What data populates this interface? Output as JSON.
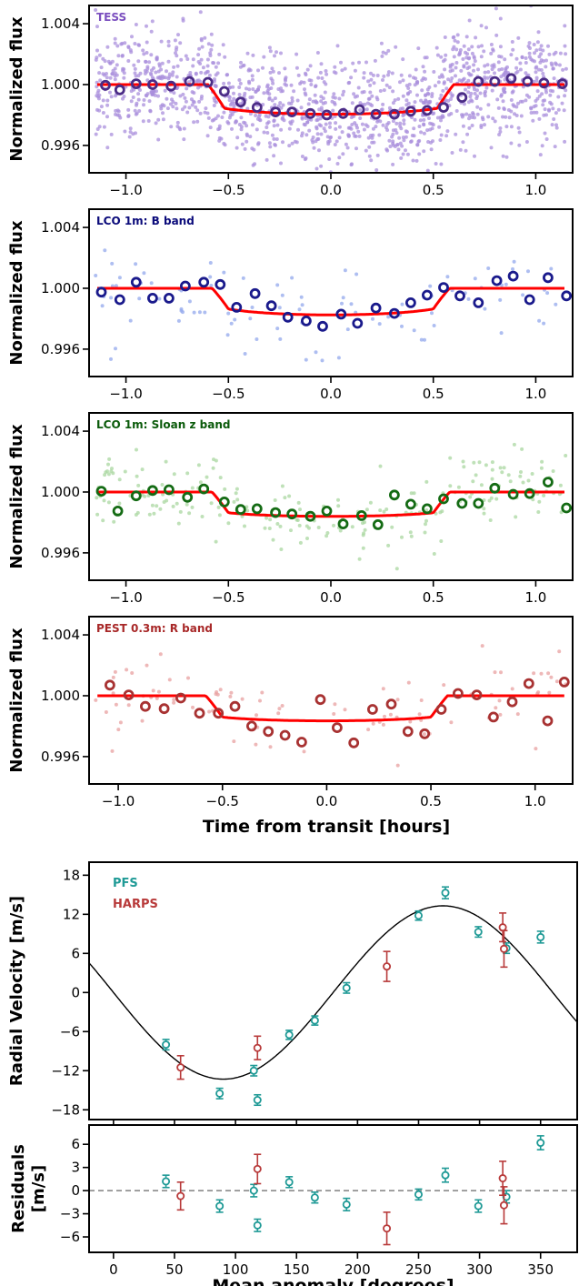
{
  "chart_data": [
    {
      "type": "scatter",
      "panel_label": "TESS",
      "label_color": "#7b4fbf",
      "ylabel": "Normalized flux",
      "xlim": [
        -1.18,
        1.18
      ],
      "ylim": [
        0.9942,
        1.0052
      ],
      "xticks": [
        -1.0,
        -0.5,
        0.0,
        0.5,
        1.0
      ],
      "xtick_labels": [
        "−1.0",
        "−0.5",
        "0.0",
        "0.5",
        "1.0"
      ],
      "yticks": [
        0.996,
        1.0,
        1.004
      ],
      "ytick_labels": [
        "0.996",
        "1.000",
        "1.004"
      ],
      "raw_color": "#a98fdc",
      "binned_color": "#4b2c86",
      "model_color": "#ff0000",
      "raw_scatter": 0.0018,
      "raw_count": 1400,
      "binned": {
        "x": [
          -1.1,
          -1.03,
          -0.95,
          -0.87,
          -0.78,
          -0.69,
          -0.6,
          -0.52,
          -0.44,
          -0.36,
          -0.27,
          -0.19,
          -0.1,
          -0.02,
          0.06,
          0.14,
          0.22,
          0.31,
          0.39,
          0.47,
          0.55,
          0.64,
          0.72,
          0.8,
          0.88,
          0.96,
          1.04,
          1.13
        ],
        "y": [
          0.99995,
          0.99965,
          1.00005,
          1.0,
          0.9999,
          1.0002,
          1.00015,
          0.99955,
          0.99885,
          0.9985,
          0.9982,
          0.9982,
          0.9981,
          0.998,
          0.9981,
          0.99835,
          0.99805,
          0.99805,
          0.99825,
          0.9983,
          0.9985,
          0.99915,
          1.0002,
          1.0002,
          1.0004,
          1.0002,
          1.0001,
          1.00005
        ]
      },
      "model": {
        "depth": 0.00195,
        "t14": 1.2,
        "ingress": 0.08,
        "limb_darkening": 0.4
      }
    },
    {
      "type": "scatter",
      "panel_label": "LCO 1m: B band",
      "label_color": "#0a0a7a",
      "ylabel": "Normalized flux",
      "xlim": [
        -1.18,
        1.18
      ],
      "ylim": [
        0.9942,
        1.0052
      ],
      "xticks": [
        -1.0,
        -0.5,
        0.0,
        0.5,
        1.0
      ],
      "xtick_labels": [
        "−1.0",
        "−0.5",
        "0.0",
        "0.5",
        "1.0"
      ],
      "yticks": [
        0.996,
        1.0,
        1.004
      ],
      "ytick_labels": [
        "0.996",
        "1.000",
        "1.004"
      ],
      "raw_color": "#93a8ec",
      "binned_color": "#1a1a8c",
      "model_color": "#ff0000",
      "raw_scatter": 0.0014,
      "raw_count": 100,
      "binned": {
        "x": [
          -1.12,
          -1.03,
          -0.95,
          -0.87,
          -0.79,
          -0.71,
          -0.62,
          -0.54,
          -0.46,
          -0.37,
          -0.29,
          -0.21,
          -0.12,
          -0.04,
          0.05,
          0.13,
          0.22,
          0.31,
          0.39,
          0.47,
          0.55,
          0.63,
          0.72,
          0.81,
          0.89,
          0.97,
          1.06,
          1.15
        ],
        "y": [
          0.99975,
          0.99925,
          1.0004,
          0.99935,
          0.99935,
          1.00015,
          1.0004,
          1.00025,
          0.99875,
          0.99965,
          0.99885,
          0.9981,
          0.99785,
          0.9975,
          0.9983,
          0.9977,
          0.9987,
          0.99835,
          0.99905,
          0.99955,
          1.00005,
          0.9995,
          0.99905,
          1.0005,
          1.0008,
          0.99925,
          1.0007,
          0.9995
        ]
      },
      "model": {
        "depth": 0.00175,
        "t14": 1.16,
        "ingress": 0.08,
        "limb_darkening": 0.45
      }
    },
    {
      "type": "scatter",
      "panel_label": "LCO 1m: Sloan z band",
      "label_color": "#0a5a0a",
      "ylabel": "Normalized flux",
      "xlim": [
        -1.18,
        1.18
      ],
      "ylim": [
        0.9942,
        1.0052
      ],
      "xticks": [
        -1.0,
        -0.5,
        0.0,
        0.5,
        1.0
      ],
      "xtick_labels": [
        "−1.0",
        "−0.5",
        "0.0",
        "0.5",
        "1.0"
      ],
      "yticks": [
        0.996,
        1.0,
        1.004
      ],
      "ytick_labels": [
        "0.996",
        "1.000",
        "1.004"
      ],
      "raw_color": "#a9d7a0",
      "binned_color": "#146b14",
      "model_color": "#ff0000",
      "raw_scatter": 0.0012,
      "raw_count": 220,
      "binned": {
        "x": [
          -1.12,
          -1.04,
          -0.95,
          -0.87,
          -0.79,
          -0.7,
          -0.62,
          -0.52,
          -0.44,
          -0.36,
          -0.27,
          -0.19,
          -0.1,
          -0.02,
          0.06,
          0.15,
          0.23,
          0.31,
          0.39,
          0.47,
          0.55,
          0.64,
          0.72,
          0.8,
          0.89,
          0.97,
          1.06,
          1.15
        ],
        "y": [
          1.00005,
          0.99875,
          0.99975,
          1.0001,
          1.00015,
          0.99965,
          1.0002,
          0.99935,
          0.99885,
          0.9989,
          0.99865,
          0.99855,
          0.9984,
          0.99875,
          0.9979,
          0.99845,
          0.99785,
          0.9998,
          0.9992,
          0.9989,
          0.99955,
          0.99925,
          0.99925,
          1.00025,
          0.99985,
          0.9999,
          1.00065,
          0.99895
        ]
      },
      "model": {
        "depth": 0.0016,
        "t14": 1.16,
        "ingress": 0.08,
        "limb_darkening": 0.3
      }
    },
    {
      "type": "scatter",
      "panel_label": "PEST 0.3m: R band",
      "label_color": "#a82828",
      "ylabel": "Normalized flux",
      "xlabel": "Time from transit [hours]",
      "xlim": [
        -1.14,
        1.18
      ],
      "ylim": [
        0.9942,
        1.0052
      ],
      "xticks": [
        -1.0,
        -0.5,
        0.0,
        0.5,
        1.0
      ],
      "xtick_labels": [
        "−1.0",
        "−0.5",
        "0.0",
        "0.5",
        "1.0"
      ],
      "yticks": [
        0.996,
        1.0,
        1.004
      ],
      "ytick_labels": [
        "0.996",
        "1.000",
        "1.004"
      ],
      "raw_color": "#e8a0a0",
      "binned_color": "#a83232",
      "model_color": "#ff0000",
      "raw_scatter": 0.0015,
      "raw_count": 90,
      "binned": {
        "x": [
          -1.04,
          -0.95,
          -0.87,
          -0.78,
          -0.7,
          -0.61,
          -0.52,
          -0.44,
          -0.36,
          -0.28,
          -0.2,
          -0.12,
          -0.03,
          0.05,
          0.13,
          0.22,
          0.31,
          0.39,
          0.47,
          0.55,
          0.63,
          0.72,
          0.8,
          0.89,
          0.97,
          1.06,
          1.14
        ],
        "y": [
          1.0007,
          1.00005,
          0.9993,
          0.99915,
          0.99985,
          0.99885,
          0.99885,
          0.9993,
          0.998,
          0.99765,
          0.9974,
          0.99695,
          0.99975,
          0.9979,
          0.9969,
          0.9991,
          0.99945,
          0.99765,
          0.9975,
          0.9991,
          1.00015,
          1.00005,
          0.9986,
          0.9996,
          1.0008,
          0.99835,
          1.0009
        ]
      },
      "model": {
        "depth": 0.00165,
        "t14": 1.16,
        "ingress": 0.08,
        "limb_darkening": 0.3
      }
    },
    {
      "type": "scatter",
      "ylabel": "Radial Velocity [m/s]",
      "xlim": [
        -20,
        380
      ],
      "ylim": [
        -19.5,
        20
      ],
      "xticks": [
        0,
        50,
        100,
        150,
        200,
        250,
        300,
        350
      ],
      "yticks": [
        -18,
        -12,
        -6,
        0,
        6,
        12,
        18
      ],
      "ytick_labels": [
        "−18",
        "−12",
        "−6",
        "0",
        "6",
        "12",
        "18"
      ],
      "legend": [
        {
          "name": "PFS",
          "color": "#1f9a96"
        },
        {
          "name": "HARPS",
          "color": "#b83a3a"
        }
      ],
      "model": {
        "amplitude": 13.3,
        "peak_anomaly": 270,
        "color": "#000000"
      },
      "series": [
        {
          "name": "PFS",
          "color": "#1f9a96",
          "x": [
            43,
            87,
            115,
            118,
            144,
            165,
            191,
            250,
            272,
            299,
            322,
            350
          ],
          "y": [
            -8,
            -15.5,
            -12,
            -16.5,
            -6.5,
            -4.3,
            0.7,
            11.8,
            15.3,
            9.3,
            6.8,
            8.5
          ],
          "err": [
            0.8,
            0.8,
            0.8,
            0.8,
            0.7,
            0.7,
            0.8,
            0.7,
            0.9,
            0.8,
            0.8,
            0.9
          ]
        },
        {
          "name": "HARPS",
          "color": "#b83a3a",
          "x": [
            55,
            118,
            224,
            319,
            320
          ],
          "y": [
            -11.5,
            -8.5,
            4,
            10,
            6.7
          ],
          "err": [
            1.8,
            1.8,
            2.3,
            2.2,
            2.8
          ]
        }
      ]
    },
    {
      "type": "scatter",
      "ylabel": "Residuals [m/s]",
      "ylabel_lines": [
        "Residuals",
        "[m/s]"
      ],
      "xlabel": "Mean anomaly [degrees]",
      "xlim": [
        -20,
        380
      ],
      "ylim": [
        -8,
        8.5
      ],
      "xticks": [
        0,
        50,
        100,
        150,
        200,
        250,
        300,
        350
      ],
      "yticks": [
        -6,
        -3,
        0,
        3,
        6
      ],
      "ytick_labels": [
        "−6",
        "−3",
        "0",
        "3",
        "6"
      ],
      "zero_line_color": "#808080",
      "series": [
        {
          "name": "PFS",
          "color": "#1f9a96",
          "x": [
            43,
            87,
            115,
            118,
            144,
            165,
            191,
            250,
            272,
            299,
            322,
            350
          ],
          "y": [
            1.2,
            -2,
            0,
            -4.5,
            1.1,
            -0.9,
            -1.8,
            -0.5,
            2,
            -2,
            -0.8,
            6.2
          ],
          "err": [
            0.8,
            0.8,
            0.8,
            0.8,
            0.7,
            0.7,
            0.8,
            0.7,
            0.9,
            0.8,
            0.8,
            0.9
          ]
        },
        {
          "name": "HARPS",
          "color": "#b83a3a",
          "x": [
            55,
            118,
            224,
            319,
            320
          ],
          "y": [
            -0.7,
            2.8,
            -4.9,
            1.6,
            -1.9
          ],
          "err": [
            1.8,
            1.9,
            2.1,
            2.2,
            2.4
          ]
        }
      ]
    }
  ]
}
